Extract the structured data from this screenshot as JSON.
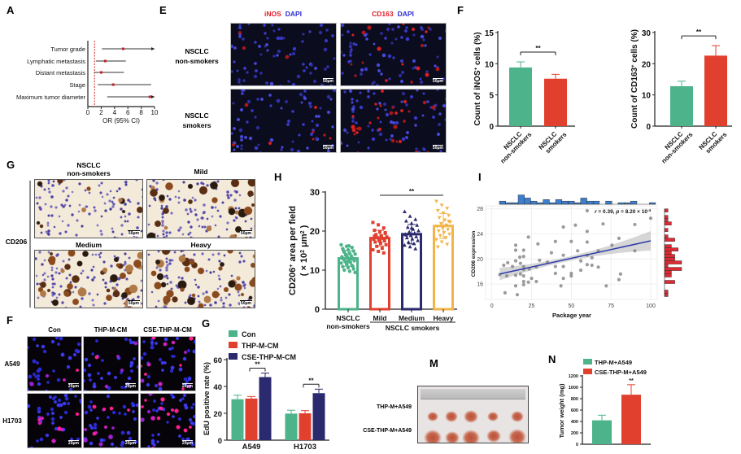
{
  "panel_labels": {
    "A": "A",
    "E": "E",
    "F_top": "F",
    "G_top": "G",
    "H": "H",
    "I": "I",
    "F_bottom": "F",
    "G_bottom": "G",
    "M": "M",
    "N": "N"
  },
  "panel_E": {
    "col1_marker": "iNOS",
    "col1_dapi": "DAPI",
    "col2_marker": "CD163",
    "col2_dapi": "DAPI",
    "row1_line1": "NSCLC",
    "row1_line2": "non-smokers",
    "row2_line1": "NSCLC",
    "row2_line2": "smokers",
    "scale_bar": "50μm",
    "colors": {
      "marker": "#e0202a",
      "dapi": "#2c2cd0"
    }
  },
  "panel_G_top": {
    "header1_line1": "NSCLC",
    "header1_line2": "non-smokers",
    "header2": "Mild",
    "header3": "Medium",
    "header4": "Heavy",
    "row_label": "CD206",
    "scale_bar": "50μm"
  },
  "panel_F_bottom": {
    "col_headers": [
      "Con",
      "THP-M-CM",
      "CSE-THP-M-CM"
    ],
    "row_labels": [
      "A549",
      "H1703"
    ],
    "scale_bar": "20μm"
  },
  "panel_M": {
    "row_labels": [
      "THP-M+A549",
      "CSE-THP-M+A549"
    ]
  },
  "chart_data": [
    {
      "id": "A",
      "type": "forest",
      "xlabel": "OR (95% CI)",
      "xlim": [
        0,
        10
      ],
      "xticks": [
        "0",
        "2",
        "4",
        "6",
        "8",
        "10"
      ],
      "reference_line": 1,
      "rows": [
        {
          "label": "Tumor grade",
          "or": 5.3,
          "lo": 2.1,
          "hi": 10,
          "hi_arrow": true
        },
        {
          "label": "Lymphatic metastasis",
          "or": 2.6,
          "lo": 1.2,
          "hi": 5.7,
          "hi_arrow": false
        },
        {
          "label": "Distant metastasis",
          "or": 2.0,
          "lo": 0.9,
          "hi": 5.4,
          "hi_arrow": false
        },
        {
          "label": "Stage",
          "or": 3.8,
          "lo": 1.5,
          "hi": 9.5,
          "hi_arrow": false
        },
        {
          "label": "Maximum tumor diameter",
          "or": 9.3,
          "lo": 2.9,
          "hi": 10,
          "hi_arrow": true
        }
      ]
    },
    {
      "id": "F_iNOS",
      "type": "bar",
      "ylabel_pre": "Count of iNOS",
      "ylabel_sup": "+",
      "ylabel_post": " cells (%)",
      "ylim": [
        0,
        15
      ],
      "yticks": [
        "0",
        "5",
        "10",
        "15"
      ],
      "categories": [
        [
          "NSCLC",
          "non-smokers"
        ],
        [
          "NSCLC",
          "smokers"
        ]
      ],
      "values": [
        9.4,
        7.6
      ],
      "errors": [
        0.9,
        0.7
      ],
      "colors": [
        "#4cb38a",
        "#e2402f"
      ],
      "significance": "**"
    },
    {
      "id": "F_CD163",
      "type": "bar",
      "ylabel_pre": "Count of CD163",
      "ylabel_sup": "+",
      "ylabel_post": " cells (%)",
      "ylim": [
        0,
        30
      ],
      "yticks": [
        "0",
        "10",
        "20",
        "30"
      ],
      "categories": [
        [
          "NSCLC",
          "non-smokers"
        ],
        [
          "NSCLC",
          "smokers"
        ]
      ],
      "values": [
        12.8,
        22.6
      ],
      "errors": [
        1.6,
        3.2
      ],
      "colors": [
        "#4cb38a",
        "#e2402f"
      ],
      "significance": "**"
    },
    {
      "id": "H",
      "type": "bar",
      "ylabel1_pre": "CD206",
      "ylabel1_sup": "+",
      "ylabel1_post": " area per field",
      "ylabel2_pre": "( × 10",
      "ylabel2_sup": "2",
      "ylabel2_mid": " μm",
      "ylabel2_sup2": "2",
      "ylabel2_post": " )",
      "ylim": [
        0,
        30
      ],
      "yticks": [
        "0",
        "10",
        "20",
        "30"
      ],
      "categories": [
        [
          "NSCLC",
          "non-smokers"
        ],
        [
          "Mild"
        ],
        [
          "Medium"
        ],
        [
          "Heavy"
        ]
      ],
      "group_label": "NSCLC smokers",
      "values": [
        13.0,
        18.2,
        19.2,
        21.3
      ],
      "errors": [
        2.0,
        2.0,
        2.5,
        3.2
      ],
      "colors": [
        "#4cb38a",
        "#e2402f",
        "#2b2a6e",
        "#f2b44a"
      ],
      "markers": [
        "circle",
        "square",
        "triangle",
        "triangle-down"
      ],
      "points": [
        [
          16.5,
          16.1,
          15.8,
          15.5,
          15.2,
          14.9,
          14.6,
          14.3,
          14.1,
          13.8,
          13.6,
          13.4,
          13.2,
          13.0,
          12.8,
          12.6,
          12.4,
          12.2,
          12.0,
          11.8,
          11.5,
          11.2,
          10.9,
          10.6,
          10.3,
          10.0,
          9.7,
          9.4,
          14.0,
          12.9,
          13.3,
          12.1,
          11.0,
          15.0,
          16.2
        ],
        [
          22.2,
          21.6,
          20.8,
          20.2,
          19.8,
          19.4,
          19.1,
          18.8,
          18.5,
          18.3,
          18.1,
          17.9,
          17.7,
          17.5,
          17.2,
          16.9,
          16.5,
          16.1,
          15.6,
          15.2,
          14.8,
          14.4,
          18.7,
          17.4,
          19.6
        ],
        [
          25.0,
          23.8,
          23.0,
          22.6,
          22.0,
          21.5,
          21.0,
          20.5,
          20.1,
          19.8,
          19.5,
          19.2,
          18.9,
          18.6,
          18.3,
          18.0,
          17.6,
          17.2,
          16.8,
          16.4,
          16.0,
          15.5,
          19.0,
          20.8
        ],
        [
          27.6,
          26.6,
          25.8,
          25.2,
          24.6,
          24.0,
          23.4,
          22.8,
          22.3,
          21.9,
          21.5,
          21.2,
          20.8,
          20.4,
          20.0,
          19.6,
          19.2,
          18.8,
          18.3,
          17.8,
          17.2,
          16.6,
          15.9,
          21.0,
          22.5
        ]
      ],
      "significance": "**"
    },
    {
      "id": "I",
      "type": "scatter",
      "xlabel": "Package year",
      "ylabel": "CD206 expression",
      "xlim": [
        0,
        100
      ],
      "ylim": [
        14,
        28
      ],
      "xticks": [
        "0",
        "25",
        "50",
        "75",
        "100"
      ],
      "yticks": [
        "16",
        "20",
        "24",
        "28"
      ],
      "annotation_r": "r",
      "annotation_r_val": " = 0.39, ",
      "annotation_p": "p",
      "annotation_p_val": " = 8.20 × 10",
      "annotation_exp": "-4",
      "fit": {
        "x": [
          5,
          100
        ],
        "y": [
          17.6,
          22.9
        ]
      },
      "point_color": "#8a8a8a",
      "line_color": "#2b3aa8",
      "points": [
        [
          60,
          27.7
        ],
        [
          100,
          26.5
        ],
        [
          70,
          25.6
        ],
        [
          52.6,
          25.4
        ],
        [
          45,
          25.1
        ],
        [
          90,
          25.5
        ],
        [
          60,
          24.4
        ],
        [
          23,
          23.5
        ],
        [
          80,
          23.3
        ],
        [
          40,
          22.8
        ],
        [
          50,
          22.8
        ],
        [
          60,
          22.7
        ],
        [
          15,
          22.2
        ],
        [
          29,
          22.4
        ],
        [
          75.6,
          22.2
        ],
        [
          15,
          21.4
        ],
        [
          20,
          21.4
        ],
        [
          54,
          21.3
        ],
        [
          90,
          21.3
        ],
        [
          67,
          21.3
        ],
        [
          37.5,
          21
        ],
        [
          45,
          20.6
        ],
        [
          20,
          20.4
        ],
        [
          17.6,
          20.3
        ],
        [
          63,
          20.2
        ],
        [
          60,
          20.6
        ],
        [
          15,
          19.7
        ],
        [
          30,
          19.8
        ],
        [
          35,
          19.5
        ],
        [
          56,
          19.7
        ],
        [
          7.5,
          19
        ],
        [
          10,
          19.4
        ],
        [
          18,
          19.3
        ],
        [
          60,
          19.1
        ],
        [
          63,
          19
        ],
        [
          13,
          18.8
        ],
        [
          20,
          18.8
        ],
        [
          28,
          18.7
        ],
        [
          40,
          18.8
        ],
        [
          45,
          18.8
        ],
        [
          67,
          18.7
        ],
        [
          23.5,
          18.4
        ],
        [
          20,
          18.3
        ],
        [
          40,
          17.7
        ],
        [
          50,
          17.7
        ],
        [
          56,
          18.2
        ],
        [
          81,
          17.6
        ],
        [
          5,
          17.5
        ],
        [
          9.4,
          17.3
        ],
        [
          15,
          17.4
        ],
        [
          18,
          17.6
        ],
        [
          20,
          17.3
        ],
        [
          50,
          17.3
        ],
        [
          25,
          16.9
        ],
        [
          45,
          16.9
        ],
        [
          20,
          16.4
        ],
        [
          23,
          16.3
        ],
        [
          28,
          16.4
        ],
        [
          80,
          16.7
        ],
        [
          20,
          15.9
        ],
        [
          15,
          15.7
        ],
        [
          43.5,
          15.7
        ],
        [
          72,
          15.7
        ],
        [
          8.3,
          14.6
        ],
        [
          16,
          14.3
        ]
      ],
      "top_histogram": {
        "color": "#3b7fd0",
        "counts": [
          2,
          1,
          1,
          6,
          4,
          2,
          1,
          3,
          1,
          3,
          2,
          2,
          1,
          4,
          2,
          2,
          0,
          2,
          0,
          1,
          1,
          2,
          0,
          0,
          1
        ]
      },
      "right_histogram": {
        "color": "#e02a33",
        "counts": [
          1,
          0,
          1,
          1,
          2,
          0,
          1,
          0,
          1,
          3,
          0,
          2,
          4,
          2,
          3,
          3,
          5,
          1,
          5,
          2,
          2,
          0,
          3,
          0,
          0,
          1,
          1
        ]
      }
    },
    {
      "id": "G_EdU",
      "type": "bar",
      "ylabel": "EdU positive rate (%)",
      "ylim": [
        0,
        60
      ],
      "yticks": [
        "0",
        "20",
        "40",
        "60"
      ],
      "categories": [
        "A549",
        "H1703"
      ],
      "series": [
        {
          "name": "Con",
          "color": "#4cb38a",
          "values": [
            30.5,
            19.8
          ],
          "errors": [
            3.0,
            2.5
          ]
        },
        {
          "name": "THP-M-CM",
          "color": "#e2402f",
          "values": [
            31.0,
            20.0
          ],
          "errors": [
            1.5,
            2.0
          ]
        },
        {
          "name": "CSE-THP-M-CM",
          "color": "#2b2a6e",
          "values": [
            47.0,
            35.0
          ],
          "errors": [
            3.0,
            3.0
          ]
        }
      ],
      "significance": [
        "**",
        "**"
      ]
    },
    {
      "id": "N",
      "type": "bar",
      "ylabel": "Tumor weight (mg)",
      "ylim": [
        0,
        1200
      ],
      "yticks": [
        "0",
        "200",
        "400",
        "600",
        "800",
        "1000",
        "1200"
      ],
      "series": [
        {
          "name": "THP-M+A549",
          "color": "#4cb38a",
          "value": 420,
          "error": 90
        },
        {
          "name": "CSE-THP-M+A549",
          "color": "#e2402f",
          "value": 870,
          "error": 175
        }
      ],
      "significance": "**"
    }
  ]
}
